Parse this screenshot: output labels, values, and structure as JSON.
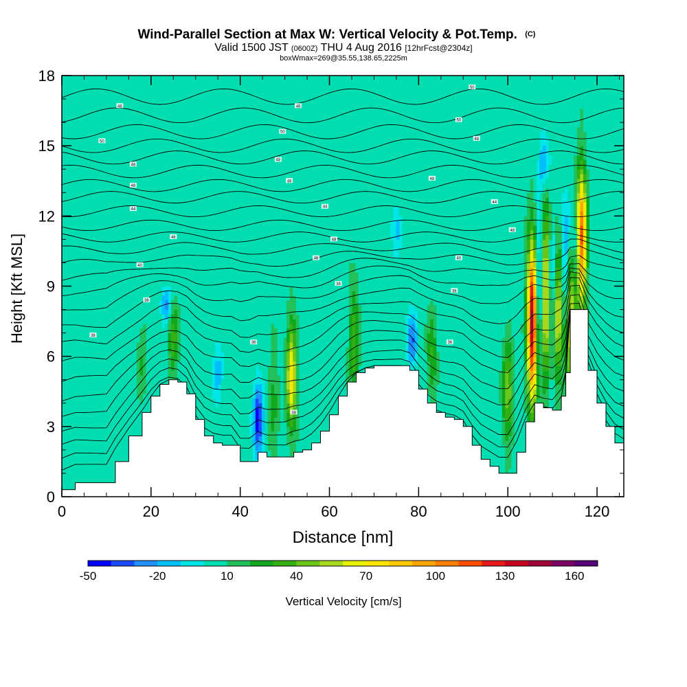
{
  "chart_data": {
    "type": "heatmap",
    "title_main": "Wind-Parallel Section at Max W: Vertical Velocity & Pot.Temp.",
    "title_copyright": "(C)",
    "subtitle_valid": "Valid 1500 JST",
    "subtitle_utc": "(0600Z)",
    "subtitle_date": "THU 4 Aug 2016",
    "subtitle_fcst": "[12hrFcst@2304z]",
    "subtitle_box": "boxWmax=269@35.55,138.65,2225m",
    "xlabel": "Distance [nm]",
    "ylabel": "Height [Kft MSL]",
    "xlim": [
      0,
      126
    ],
    "ylim": [
      0,
      18
    ],
    "x_ticks": [
      "0",
      "20",
      "40",
      "60",
      "80",
      "100",
      "120"
    ],
    "x_tick_values": [
      0,
      20,
      40,
      60,
      80,
      100,
      120
    ],
    "y_ticks": [
      "0",
      "3",
      "6",
      "9",
      "12",
      "15",
      "18"
    ],
    "y_tick_values": [
      0,
      3,
      6,
      9,
      12,
      15,
      18
    ],
    "colorbar": {
      "label": "Vertical Velocity [cm/s]",
      "tick_labels": [
        "-50",
        "-20",
        "10",
        "40",
        "70",
        "100",
        "130",
        "160"
      ],
      "tick_values": [
        -50,
        -20,
        10,
        40,
        70,
        100,
        130,
        160
      ],
      "bins": [
        -50,
        -40,
        -30,
        -20,
        -10,
        0,
        10,
        20,
        30,
        40,
        50,
        60,
        70,
        80,
        90,
        100,
        110,
        120,
        130,
        140,
        150,
        160,
        170
      ],
      "colors": [
        "#0000ff",
        "#1a4cff",
        "#1e90ff",
        "#00bfff",
        "#00e5e5",
        "#00ddb0",
        "#22c05a",
        "#12a81e",
        "#35b012",
        "#6cc61a",
        "#a8d81e",
        "#e6f000",
        "#ffe600",
        "#ffc800",
        "#ffa500",
        "#ff7f00",
        "#ff4d00",
        "#e81a1a",
        "#c8001e",
        "#a00037",
        "#7a0064",
        "#550078"
      ]
    },
    "background_value": 5,
    "terrain": {
      "x": [
        0,
        3,
        6,
        10,
        12,
        15,
        18,
        20,
        22,
        24,
        26,
        28,
        30,
        32,
        34,
        36,
        38,
        40,
        42,
        44,
        46,
        48,
        50,
        52,
        54,
        56,
        58,
        60,
        62,
        64,
        66,
        68,
        70,
        72,
        74,
        76,
        78,
        80,
        82,
        84,
        86,
        88,
        90,
        92,
        94,
        96,
        98,
        100,
        102,
        104,
        106,
        108,
        110,
        112,
        113,
        114,
        116,
        118,
        120,
        122,
        124,
        126
      ],
      "height": [
        0.3,
        0.6,
        0.6,
        0.6,
        1.5,
        2.6,
        3.6,
        4.3,
        4.8,
        5.0,
        4.9,
        4.4,
        3.3,
        2.6,
        2.3,
        2.2,
        2.2,
        1.5,
        1.5,
        1.9,
        1.7,
        1.7,
        1.7,
        1.9,
        2.0,
        2.3,
        2.8,
        3.5,
        4.3,
        4.9,
        5.3,
        5.5,
        5.6,
        5.6,
        5.6,
        5.6,
        5.4,
        4.6,
        4.0,
        3.6,
        3.4,
        3.3,
        3.0,
        2.2,
        1.6,
        1.3,
        1.0,
        1.0,
        1.9,
        3.2,
        4.0,
        3.8,
        3.7,
        4.3,
        5.3,
        8.0,
        8.0,
        5.4,
        4.0,
        3.0,
        2.3,
        2.0
      ]
    },
    "updraft_cores": [
      {
        "x": 105.5,
        "z_bottom": 4.0,
        "z_top": 11.0,
        "peak": 150
      },
      {
        "x": 116.5,
        "z_bottom": 8.0,
        "z_top": 14.0,
        "peak": 120
      },
      {
        "x": 51.5,
        "z_bottom": 2.8,
        "z_top": 7.5,
        "peak": 75
      },
      {
        "x": 108.5,
        "z_bottom": 5.0,
        "z_top": 12.5,
        "peak": 80
      },
      {
        "x": 111.2,
        "z_bottom": 5.0,
        "z_top": 11.0,
        "peak": 70
      },
      {
        "x": 114.0,
        "z_bottom": 4.5,
        "z_top": 11.0,
        "peak": 70
      },
      {
        "x": 100.0,
        "z_bottom": 2.0,
        "z_top": 7.0,
        "peak": 45
      },
      {
        "x": 25.0,
        "z_bottom": 5.0,
        "z_top": 8.5,
        "peak": 35
      },
      {
        "x": 65.5,
        "z_bottom": 4.5,
        "z_top": 9.0,
        "peak": 40
      },
      {
        "x": 83.0,
        "z_bottom": 4.0,
        "z_top": 8.0,
        "peak": 30
      },
      {
        "x": 47.5,
        "z_bottom": 2.0,
        "z_top": 6.5,
        "peak": 25
      },
      {
        "x": 18.0,
        "z_bottom": 4.0,
        "z_top": 7.0,
        "peak": 22
      }
    ],
    "downdraft_cores": [
      {
        "x": 44.0,
        "z_bottom": 1.8,
        "z_top": 5.0,
        "peak": -45
      },
      {
        "x": 23.5,
        "z_bottom": 7.5,
        "z_top": 9.0,
        "peak": -25
      },
      {
        "x": 78.5,
        "z_bottom": 5.5,
        "z_top": 7.8,
        "peak": -30
      },
      {
        "x": 107.0,
        "z_bottom": 6.0,
        "z_top": 12.0,
        "peak": -35
      },
      {
        "x": 110.0,
        "z_bottom": 6.0,
        "z_top": 12.0,
        "peak": -30
      },
      {
        "x": 113.0,
        "z_bottom": 7.0,
        "z_top": 12.5,
        "peak": -30
      },
      {
        "x": 115.3,
        "z_bottom": 9.0,
        "z_top": 12.5,
        "peak": -25
      },
      {
        "x": 108.0,
        "z_bottom": 13.0,
        "z_top": 15.5,
        "peak": -25
      },
      {
        "x": 75.0,
        "z_bottom": 10.5,
        "z_top": 12.5,
        "peak": -15
      },
      {
        "x": 35.0,
        "z_bottom": 4.0,
        "z_top": 6.5,
        "peak": -15
      }
    ],
    "theta_contours": {
      "values": [
        305,
        306,
        307,
        308,
        309,
        310,
        311,
        312,
        313,
        314,
        315,
        316,
        317,
        318,
        319,
        320,
        321,
        322,
        323,
        324,
        325,
        326,
        327,
        328,
        329,
        330
      ],
      "heights": [
        0.9,
        1.4,
        2.0,
        2.6,
        3.3,
        4.0,
        4.8,
        5.6,
        6.4,
        7.2,
        8.0,
        8.7,
        9.3,
        9.9,
        10.5,
        11.1,
        11.6,
        12.2,
        12.8,
        13.3,
        13.9,
        14.5,
        15.0,
        15.6,
        16.3,
        17.1
      ]
    },
    "contour_labels": [
      {
        "text": "48",
        "x": 13,
        "z": 16.7
      },
      {
        "text": "48",
        "x": 53,
        "z": 16.7
      },
      {
        "text": "50",
        "x": 92,
        "z": 17.5
      },
      {
        "text": "50",
        "x": 9,
        "z": 15.2
      },
      {
        "text": "50",
        "x": 49.5,
        "z": 15.6
      },
      {
        "text": "50",
        "x": 89,
        "z": 16.1
      },
      {
        "text": "48",
        "x": 16,
        "z": 14.2
      },
      {
        "text": "48",
        "x": 48.5,
        "z": 14.4
      },
      {
        "text": "48",
        "x": 93,
        "z": 15.3
      },
      {
        "text": "48",
        "x": 16,
        "z": 13.3
      },
      {
        "text": "48",
        "x": 51,
        "z": 13.5
      },
      {
        "text": "48",
        "x": 83,
        "z": 13.6
      },
      {
        "text": "44",
        "x": 16,
        "z": 12.3
      },
      {
        "text": "44",
        "x": 59,
        "z": 12.4
      },
      {
        "text": "44",
        "x": 97,
        "z": 12.6
      },
      {
        "text": "48",
        "x": 25,
        "z": 11.1
      },
      {
        "text": "48",
        "x": 61,
        "z": 11.0
      },
      {
        "text": "48",
        "x": 101,
        "z": 11.4
      },
      {
        "text": "40",
        "x": 17.5,
        "z": 9.9
      },
      {
        "text": "48",
        "x": 57,
        "z": 10.2
      },
      {
        "text": "40",
        "x": 89,
        "z": 10.2
      },
      {
        "text": "38",
        "x": 62,
        "z": 9.1
      },
      {
        "text": "38",
        "x": 88,
        "z": 8.8
      },
      {
        "text": "38",
        "x": 19,
        "z": 8.4
      },
      {
        "text": "38",
        "x": 7,
        "z": 6.9
      },
      {
        "text": "36",
        "x": 43,
        "z": 6.6
      },
      {
        "text": "36",
        "x": 87,
        "z": 6.6
      },
      {
        "text": "38",
        "x": 52,
        "z": 3.6
      }
    ]
  }
}
